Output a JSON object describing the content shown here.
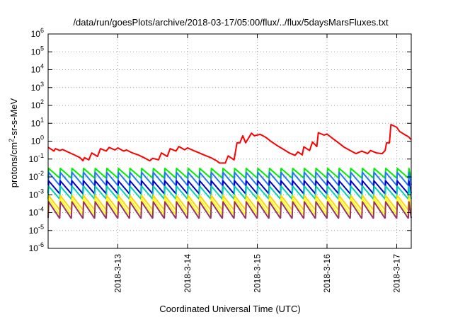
{
  "chart_data": {
    "type": "line",
    "title": "/data/run/goesPlots/archive/2018-03-17/05:00/flux/../flux/5daysMarsFluxes.txt",
    "xlabel": "Coordinated Universal Time (UTC)",
    "ylabel": "protons/cm2-sr-s-MeV",
    "yscale": "log",
    "ylim": [
      1e-06,
      1000000.0
    ],
    "y_ticks": [
      {
        "exp": -6,
        "value": 1e-06
      },
      {
        "exp": -5,
        "value": 1e-05
      },
      {
        "exp": -4,
        "value": 0.0001
      },
      {
        "exp": -3,
        "value": 0.001
      },
      {
        "exp": -2,
        "value": 0.01
      },
      {
        "exp": -1,
        "value": 0.1
      },
      {
        "exp": 0,
        "value": 1
      },
      {
        "exp": 1,
        "value": 10
      },
      {
        "exp": 2,
        "value": 100
      },
      {
        "exp": 3,
        "value": 1000
      },
      {
        "exp": 4,
        "value": 10000
      },
      {
        "exp": 5,
        "value": 100000
      },
      {
        "exp": 6,
        "value": 1000000
      }
    ],
    "xlim": [
      "2018-03-12T00:00",
      "2018-03-17T05:00"
    ],
    "x_ticks": [
      "2018-3-13",
      "2018-3-14",
      "2018-3-15",
      "2018-3-16",
      "2018-3-17"
    ],
    "grid": true,
    "series": [
      {
        "color": "#ff0000",
        "points": [
          [
            "2018-03-12T00:00",
            0.45
          ],
          [
            "2018-03-12T01:00",
            0.36
          ],
          [
            "2018-03-12T02:00",
            0.28
          ],
          [
            "2018-03-12T02:30",
            0.38
          ],
          [
            "2018-03-12T04:00",
            0.3
          ],
          [
            "2018-03-12T05:00",
            0.34
          ],
          [
            "2018-03-12T07:00",
            0.24
          ],
          [
            "2018-03-12T09:00",
            0.17
          ],
          [
            "2018-03-12T11:00",
            0.12
          ],
          [
            "2018-03-12T12:00",
            0.08
          ],
          [
            "2018-03-12T12:30",
            0.12
          ],
          [
            "2018-03-12T14:00",
            0.09
          ],
          [
            "2018-03-12T15:00",
            0.22
          ],
          [
            "2018-03-12T17:00",
            0.14
          ],
          [
            "2018-03-12T18:00",
            0.38
          ],
          [
            "2018-03-12T20:00",
            0.28
          ],
          [
            "2018-03-12T21:00",
            0.45
          ],
          [
            "2018-03-12T23:00",
            0.32
          ],
          [
            "2018-03-13T00:00",
            0.42
          ],
          [
            "2018-03-13T02:00",
            0.28
          ],
          [
            "2018-03-13T03:00",
            0.32
          ],
          [
            "2018-03-13T05:00",
            0.22
          ],
          [
            "2018-03-13T07:00",
            0.17
          ],
          [
            "2018-03-13T09:00",
            0.12
          ],
          [
            "2018-03-13T11:00",
            0.08
          ],
          [
            "2018-03-13T12:00",
            0.11
          ],
          [
            "2018-03-13T14:00",
            0.09
          ],
          [
            "2018-03-13T15:00",
            0.22
          ],
          [
            "2018-03-13T17:00",
            0.14
          ],
          [
            "2018-03-13T18:00",
            0.38
          ],
          [
            "2018-03-13T20:00",
            0.28
          ],
          [
            "2018-03-13T21:00",
            0.5
          ],
          [
            "2018-03-13T23:00",
            0.33
          ],
          [
            "2018-03-14T00:00",
            0.42
          ],
          [
            "2018-03-14T02:00",
            0.3
          ],
          [
            "2018-03-14T04:00",
            0.22
          ],
          [
            "2018-03-14T06:00",
            0.16
          ],
          [
            "2018-03-14T08:00",
            0.12
          ],
          [
            "2018-03-14T10:00",
            0.08
          ],
          [
            "2018-03-14T11:00",
            0.06
          ],
          [
            "2018-03-14T13:00",
            0.06
          ],
          [
            "2018-03-14T14:00",
            0.15
          ],
          [
            "2018-03-14T16:00",
            0.09
          ],
          [
            "2018-03-14T17:00",
            0.8
          ],
          [
            "2018-03-14T18:00",
            0.8
          ],
          [
            "2018-03-14T19:00",
            2.0
          ],
          [
            "2018-03-14T20:00",
            0.8
          ],
          [
            "2018-03-14T22:00",
            2.8
          ],
          [
            "2018-03-14T23:00",
            2.0
          ],
          [
            "2018-03-15T01:00",
            2.4
          ],
          [
            "2018-03-15T03:00",
            1.6
          ],
          [
            "2018-03-15T05:00",
            0.9
          ],
          [
            "2018-03-15T07:00",
            0.55
          ],
          [
            "2018-03-15T09:00",
            0.35
          ],
          [
            "2018-03-15T11:00",
            0.22
          ],
          [
            "2018-03-15T13:00",
            0.16
          ],
          [
            "2018-03-15T14:00",
            0.25
          ],
          [
            "2018-03-15T15:30",
            0.17
          ],
          [
            "2018-03-15T16:00",
            0.48
          ],
          [
            "2018-03-15T18:00",
            0.3
          ],
          [
            "2018-03-15T19:00",
            0.9
          ],
          [
            "2018-03-15T20:30",
            0.5
          ],
          [
            "2018-03-15T21:00",
            3.0
          ],
          [
            "2018-03-15T23:00",
            2.2
          ],
          [
            "2018-03-16T00:00",
            2.5
          ],
          [
            "2018-03-16T02:00",
            1.4
          ],
          [
            "2018-03-16T04:00",
            0.8
          ],
          [
            "2018-03-16T06:00",
            0.45
          ],
          [
            "2018-03-16T08:00",
            0.3
          ],
          [
            "2018-03-16T10:00",
            0.2
          ],
          [
            "2018-03-16T12:00",
            0.28
          ],
          [
            "2018-03-16T14:00",
            0.2
          ],
          [
            "2018-03-16T15:00",
            0.3
          ],
          [
            "2018-03-16T17:00",
            0.22
          ],
          [
            "2018-03-16T19:00",
            0.2
          ],
          [
            "2018-03-16T20:00",
            0.3
          ],
          [
            "2018-03-16T20:30",
            0.8
          ],
          [
            "2018-03-16T21:30",
            0.8
          ],
          [
            "2018-03-16T22:00",
            8.5
          ],
          [
            "2018-03-17T00:00",
            6.0
          ],
          [
            "2018-03-17T01:00",
            3.5
          ],
          [
            "2018-03-17T03:00",
            2.2
          ],
          [
            "2018-03-17T04:00",
            1.8
          ],
          [
            "2018-03-17T05:00",
            1.2
          ]
        ]
      },
      {
        "color": "#00ee00",
        "sawtooth": {
          "high": 0.03,
          "low": 0.009
        }
      },
      {
        "color": "#1e78ff",
        "sawtooth": {
          "high": 0.018,
          "low": 0.0035
        }
      },
      {
        "color": "#0000cc",
        "sawtooth": {
          "high": 0.006,
          "low": 0.0012
        }
      },
      {
        "color": "#00d2b4",
        "sawtooth": {
          "high": 0.003,
          "low": 0.0006
        }
      },
      {
        "color": "#ffd700",
        "sawtooth": {
          "high": 0.0009,
          "low": 0.00015
        }
      },
      {
        "color": "#ffff00",
        "sawtooth": {
          "high": 0.0006,
          "low": 8e-05
        }
      },
      {
        "color": "#993366",
        "sawtooth": {
          "high": 0.0004,
          "low": 5e-05
        }
      }
    ]
  }
}
